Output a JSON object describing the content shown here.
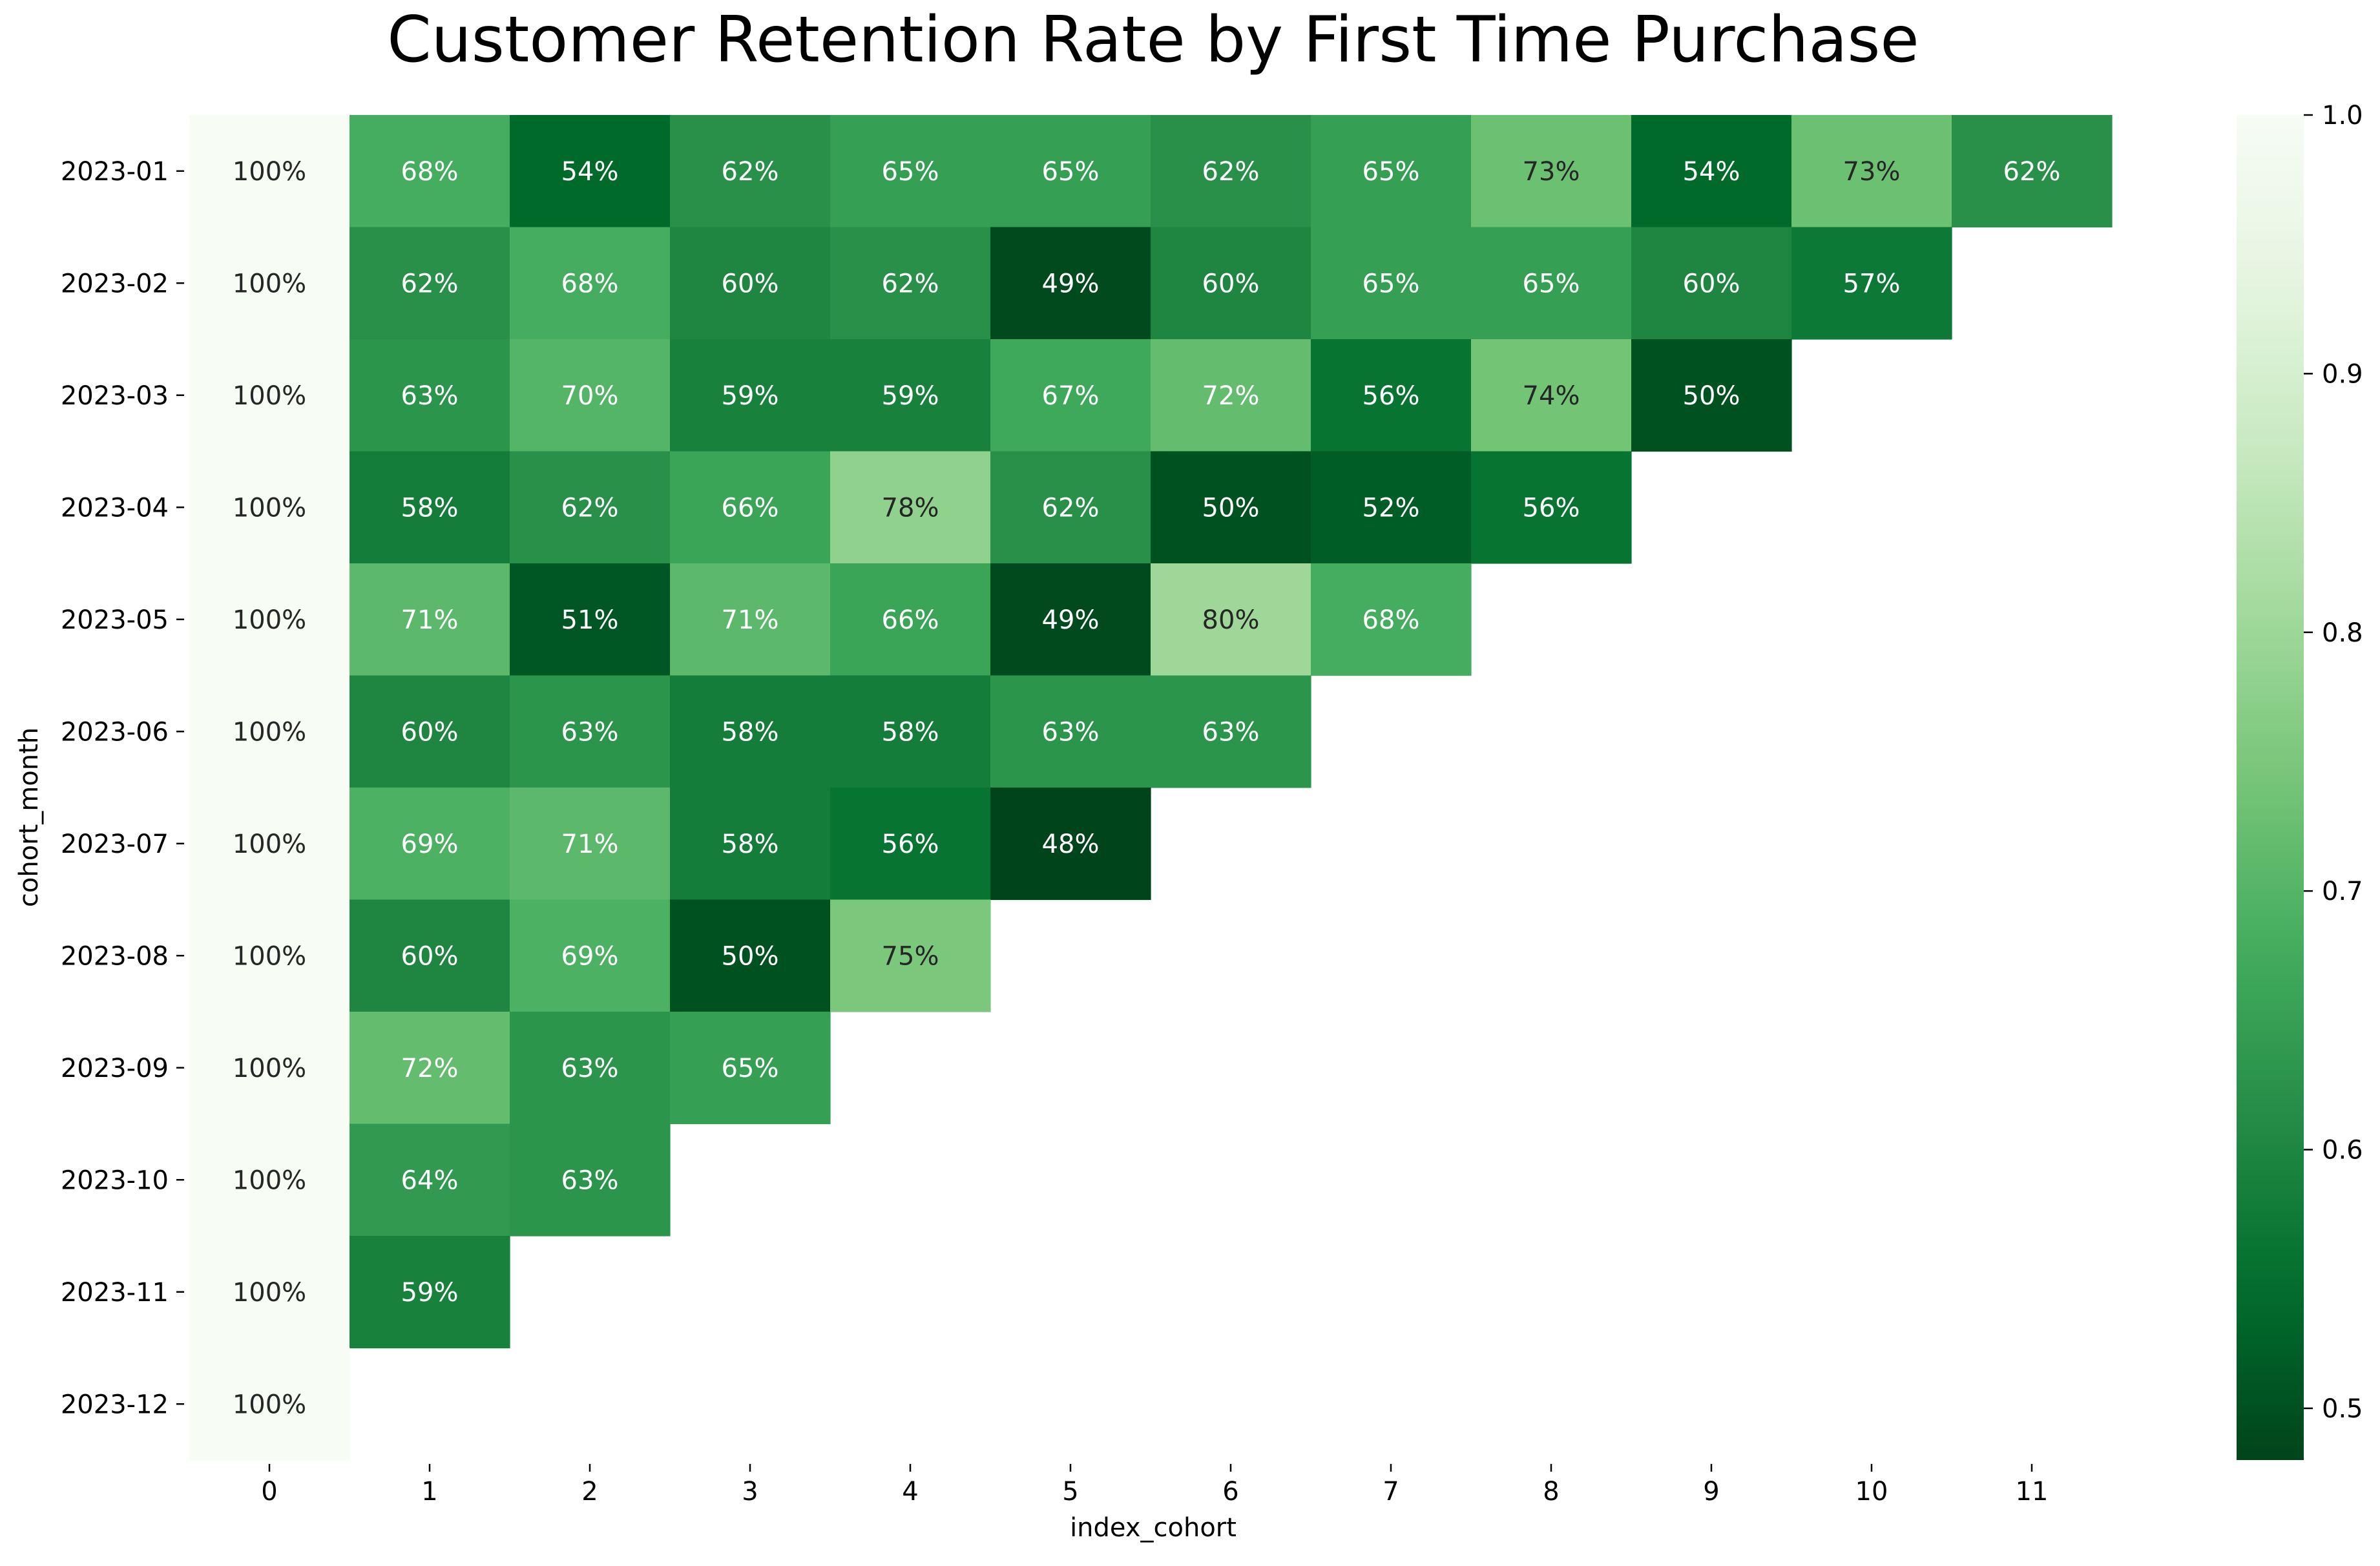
{
  "chart_data": {
    "type": "heatmap",
    "title": "Customer Retention Rate by First Time Purchase",
    "xlabel": "index_cohort",
    "ylabel": "cohort_month",
    "x_categories": [
      "0",
      "1",
      "2",
      "3",
      "4",
      "5",
      "6",
      "7",
      "8",
      "9",
      "10",
      "11"
    ],
    "y_categories": [
      "2023-01",
      "2023-02",
      "2023-03",
      "2023-04",
      "2023-05",
      "2023-06",
      "2023-07",
      "2023-08",
      "2023-09",
      "2023-10",
      "2023-11",
      "2023-12"
    ],
    "values": [
      [
        1.0,
        0.68,
        0.54,
        0.62,
        0.65,
        0.65,
        0.62,
        0.65,
        0.73,
        0.54,
        0.73,
        0.62
      ],
      [
        1.0,
        0.62,
        0.68,
        0.6,
        0.62,
        0.49,
        0.6,
        0.65,
        0.65,
        0.6,
        0.57
      ],
      [
        1.0,
        0.63,
        0.7,
        0.59,
        0.59,
        0.67,
        0.72,
        0.56,
        0.74,
        0.5
      ],
      [
        1.0,
        0.58,
        0.62,
        0.66,
        0.78,
        0.62,
        0.5,
        0.52,
        0.56
      ],
      [
        1.0,
        0.71,
        0.51,
        0.71,
        0.66,
        0.49,
        0.8,
        0.68
      ],
      [
        1.0,
        0.6,
        0.63,
        0.58,
        0.58,
        0.63,
        0.63
      ],
      [
        1.0,
        0.69,
        0.71,
        0.58,
        0.56,
        0.48
      ],
      [
        1.0,
        0.6,
        0.69,
        0.5,
        0.75
      ],
      [
        1.0,
        0.72,
        0.63,
        0.65
      ],
      [
        1.0,
        0.64,
        0.63
      ],
      [
        1.0,
        0.59
      ],
      [
        1.0
      ]
    ],
    "value_format": "percent",
    "colormap": "Greens_r",
    "colorbar": {
      "range": [
        0.48,
        1.0
      ],
      "ticks": [
        0.5,
        0.6,
        0.7,
        0.8,
        0.9,
        1.0
      ],
      "tick_labels": [
        "0.5",
        "0.6",
        "0.7",
        "0.8",
        "0.9",
        "1.0"
      ]
    },
    "grid": false,
    "legend": "colorbar-right"
  }
}
